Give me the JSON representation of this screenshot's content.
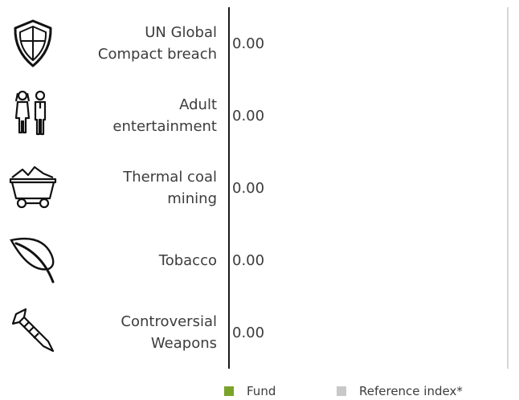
{
  "chart_data": {
    "type": "bar",
    "categories": [
      "UN Global\nCompact breach",
      "Adult\nentertainment",
      "Thermal coal\nmining",
      "Tobacco",
      "Controversial\nWeapons"
    ],
    "series": [
      {
        "name": "Fund",
        "values": [
          0.0,
          0.0,
          0.0,
          0.0,
          0.0
        ],
        "color": "#7aa32a"
      },
      {
        "name": "Reference index*",
        "values": [
          null,
          null,
          null,
          null,
          null
        ],
        "color": "#c8c8c8"
      }
    ],
    "value_labels": [
      "0.00",
      "0.00",
      "0.00",
      "0.00",
      "0.00"
    ],
    "icons": [
      "shield-icon",
      "people-icon",
      "coal-cart-icon",
      "leaf-icon",
      "missile-icon"
    ],
    "legend_position": "bottom",
    "grid": false
  }
}
